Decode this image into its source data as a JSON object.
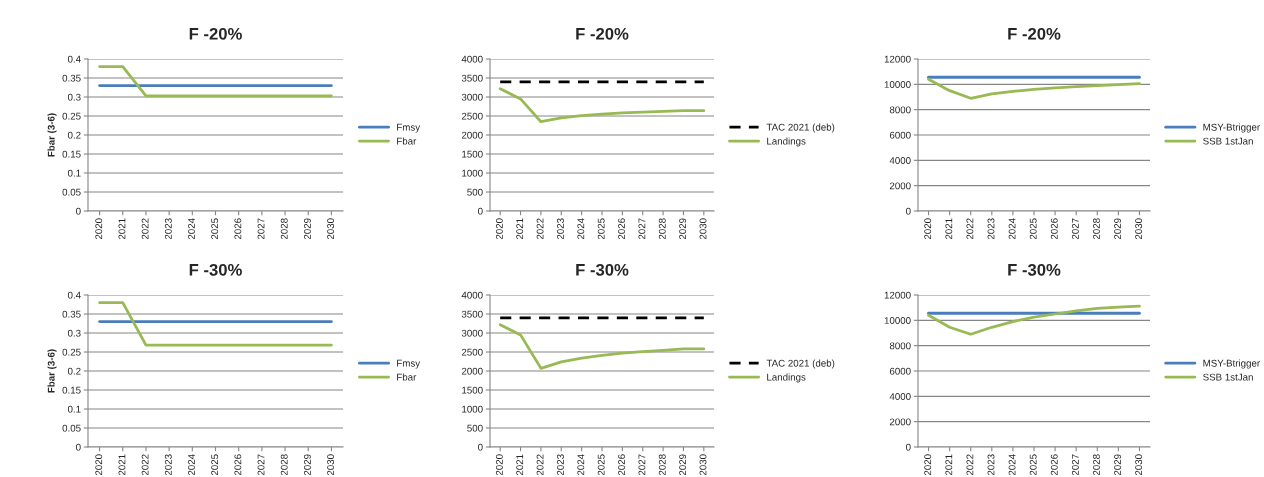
{
  "chart_data": [
    {
      "type": "line",
      "title": "F -20%",
      "ylabel": "Fbar (3-6)",
      "categories": [
        "2020",
        "2021",
        "2022",
        "2023",
        "2024",
        "2025",
        "2026",
        "2027",
        "2028",
        "2029",
        "2030"
      ],
      "ylim": [
        0,
        0.4
      ],
      "yticks": [
        0,
        0.05,
        0.1,
        0.15,
        0.2,
        0.25,
        0.3,
        0.35,
        0.4
      ],
      "grid": "y",
      "legend": "right",
      "series": [
        {
          "name": "Fmsy",
          "color": "#4a7ebb",
          "values": [
            0.33,
            0.33,
            0.33,
            0.33,
            0.33,
            0.33,
            0.33,
            0.33,
            0.33,
            0.33,
            0.33
          ]
        },
        {
          "name": "Fbar",
          "color": "#98b954",
          "values": [
            0.38,
            0.38,
            0.303,
            0.303,
            0.303,
            0.303,
            0.303,
            0.303,
            0.303,
            0.303,
            0.303
          ]
        }
      ]
    },
    {
      "type": "line",
      "title": "F -20%",
      "categories": [
        "2020",
        "2021",
        "2022",
        "2023",
        "2024",
        "2025",
        "2026",
        "2027",
        "2028",
        "2029",
        "2030"
      ],
      "ylim": [
        0,
        4000
      ],
      "yticks": [
        0,
        500,
        1000,
        1500,
        2000,
        2500,
        3000,
        3500,
        4000
      ],
      "grid": "y",
      "legend": "right",
      "series": [
        {
          "name": "TAC 2021 (deb)",
          "color": "#000000",
          "line_style": "dashed",
          "values": [
            3400,
            3400,
            3400,
            3400,
            3400,
            3400,
            3400,
            3400,
            3400,
            3400,
            3400
          ]
        },
        {
          "name": "Landings",
          "color": "#98b954",
          "values": [
            3220,
            2950,
            2350,
            2450,
            2510,
            2550,
            2580,
            2600,
            2620,
            2640,
            2640
          ]
        }
      ]
    },
    {
      "type": "line",
      "title": "F -20%",
      "categories": [
        "2020",
        "2021",
        "2022",
        "2023",
        "2024",
        "2025",
        "2026",
        "2027",
        "2028",
        "2029",
        "2030"
      ],
      "ylim": [
        0,
        12000
      ],
      "yticks": [
        0,
        2000,
        4000,
        6000,
        8000,
        10000,
        12000
      ],
      "grid": "y",
      "legend": "right",
      "series": [
        {
          "name": "MSY-Btrigger",
          "color": "#4a7ebb",
          "values": [
            10560,
            10560,
            10560,
            10560,
            10560,
            10560,
            10560,
            10560,
            10560,
            10560,
            10560
          ]
        },
        {
          "name": "SSB 1stJan",
          "color": "#98b954",
          "values": [
            10400,
            9500,
            8900,
            9250,
            9450,
            9600,
            9720,
            9820,
            9900,
            9980,
            10050
          ]
        }
      ]
    },
    {
      "type": "line",
      "title": "F -30%",
      "ylabel": "Fbar (3-6)",
      "categories": [
        "2020",
        "2021",
        "2022",
        "2023",
        "2024",
        "2025",
        "2026",
        "2027",
        "2028",
        "2029",
        "2030"
      ],
      "ylim": [
        0,
        0.4
      ],
      "yticks": [
        0,
        0.05,
        0.1,
        0.15,
        0.2,
        0.25,
        0.3,
        0.35,
        0.4
      ],
      "grid": "y",
      "legend": "right",
      "series": [
        {
          "name": "Fmsy",
          "color": "#4a7ebb",
          "values": [
            0.33,
            0.33,
            0.33,
            0.33,
            0.33,
            0.33,
            0.33,
            0.33,
            0.33,
            0.33,
            0.33
          ]
        },
        {
          "name": "Fbar",
          "color": "#98b954",
          "values": [
            0.38,
            0.38,
            0.268,
            0.268,
            0.268,
            0.268,
            0.268,
            0.268,
            0.268,
            0.268,
            0.268
          ]
        }
      ]
    },
    {
      "type": "line",
      "title": "F -30%",
      "categories": [
        "2020",
        "2021",
        "2022",
        "2023",
        "2024",
        "2025",
        "2026",
        "2027",
        "2028",
        "2029",
        "2030"
      ],
      "ylim": [
        0,
        4000
      ],
      "yticks": [
        0,
        500,
        1000,
        1500,
        2000,
        2500,
        3000,
        3500,
        4000
      ],
      "grid": "y",
      "legend": "right",
      "series": [
        {
          "name": "TAC 2021 (deb)",
          "color": "#000000",
          "line_style": "dashed",
          "values": [
            3400,
            3400,
            3400,
            3400,
            3400,
            3400,
            3400,
            3400,
            3400,
            3400,
            3400
          ]
        },
        {
          "name": "Landings",
          "color": "#98b954",
          "values": [
            3220,
            2950,
            2070,
            2240,
            2340,
            2410,
            2470,
            2510,
            2540,
            2580,
            2580
          ]
        }
      ]
    },
    {
      "type": "line",
      "title": "F -30%",
      "categories": [
        "2020",
        "2021",
        "2022",
        "2023",
        "2024",
        "2025",
        "2026",
        "2027",
        "2028",
        "2029",
        "2030"
      ],
      "ylim": [
        0,
        12000
      ],
      "yticks": [
        0,
        2000,
        4000,
        6000,
        8000,
        10000,
        12000
      ],
      "grid": "y",
      "legend": "right",
      "series": [
        {
          "name": "MSY-Btrigger",
          "color": "#4a7ebb",
          "values": [
            10560,
            10560,
            10560,
            10560,
            10560,
            10560,
            10560,
            10560,
            10560,
            10560,
            10560
          ]
        },
        {
          "name": "SSB 1stJan",
          "color": "#98b954",
          "values": [
            10400,
            9450,
            8900,
            9450,
            9900,
            10250,
            10500,
            10750,
            10950,
            11050,
            11120
          ]
        }
      ]
    }
  ]
}
